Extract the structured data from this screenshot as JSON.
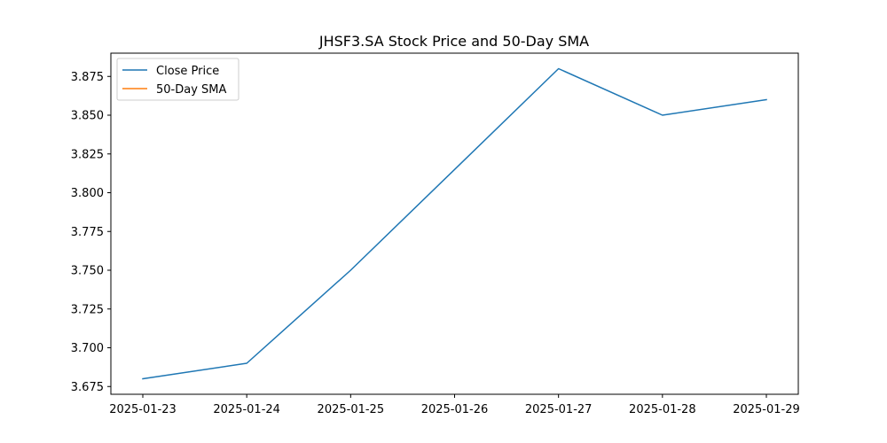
{
  "chart_data": {
    "type": "line",
    "title": "JHSF3.SA Stock Price and 50-Day SMA",
    "xlabel": "",
    "ylabel": "",
    "x": [
      "2025-01-23",
      "2025-01-24",
      "2025-01-25",
      "2025-01-26",
      "2025-01-27",
      "2025-01-28",
      "2025-01-29"
    ],
    "series": [
      {
        "name": "Close Price",
        "color": "#1f77b4",
        "values": [
          3.68,
          3.69,
          3.75,
          3.815,
          3.88,
          3.85,
          3.86
        ]
      },
      {
        "name": "50-Day SMA",
        "color": "#ff7f0e",
        "values": [
          null,
          null,
          null,
          null,
          null,
          null,
          null
        ]
      }
    ],
    "yticks": [
      "3.675",
      "3.700",
      "3.725",
      "3.750",
      "3.775",
      "3.800",
      "3.825",
      "3.850",
      "3.875"
    ],
    "ylim": [
      3.67,
      3.89
    ],
    "grid": false,
    "legend_position": "top-left"
  }
}
